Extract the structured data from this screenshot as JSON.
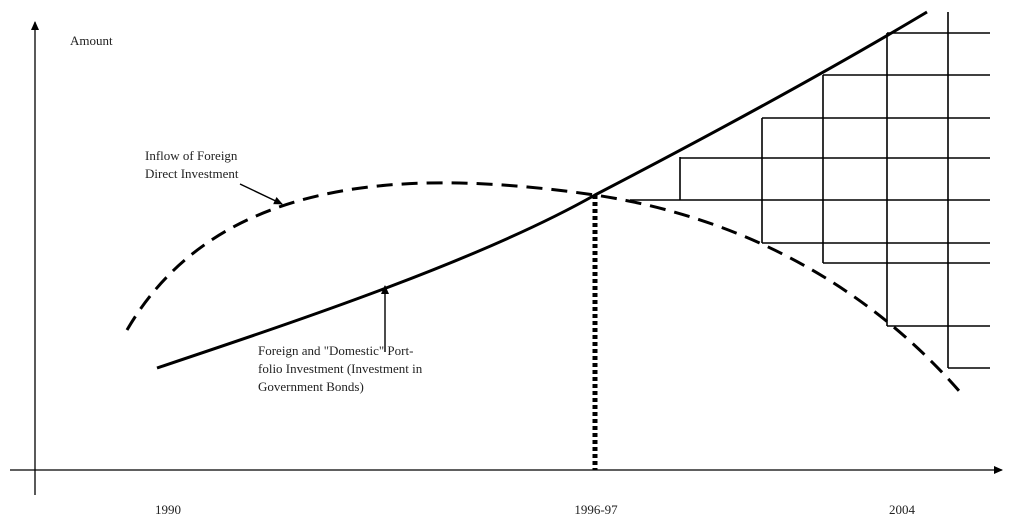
{
  "y_axis_label": "Amount",
  "x_labels": [
    "1990",
    "1996-97",
    "2004"
  ],
  "annotations": {
    "fdi": [
      "Inflow of Foreign",
      "Direct Investment"
    ],
    "portfolio": [
      "Foreign and \"Domestic\" Port-",
      "folio Investment (Investment in",
      "Government Bonds)"
    ]
  }
}
